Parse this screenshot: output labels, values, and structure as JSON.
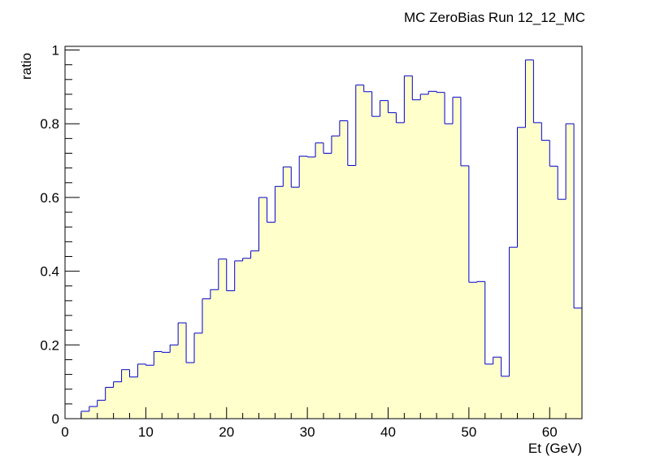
{
  "chart_data": {
    "type": "histogram",
    "title": "MC ZeroBias Run 12_12_MC",
    "xlabel": "Et (GeV)",
    "ylabel": "ratio",
    "xlim": [
      0,
      64
    ],
    "ylim": [
      0,
      1.01
    ],
    "bin_width": 1,
    "x_ticks": [
      0,
      10,
      20,
      30,
      40,
      50,
      60
    ],
    "y_ticks": [
      0,
      0.2,
      0.4,
      0.6,
      0.8,
      1
    ],
    "x_tick_labels": [
      "0",
      "10",
      "20",
      "30",
      "40",
      "50",
      "60"
    ],
    "y_tick_labels": [
      "0",
      "0.2",
      "0.4",
      "0.6",
      "0.8",
      "1"
    ],
    "grid": false,
    "legend": "none",
    "series": [
      {
        "x_bin_edges": [
          2,
          3,
          4,
          5,
          6,
          7,
          8,
          9,
          10,
          11,
          12,
          13,
          14,
          15,
          16,
          17,
          18,
          19,
          20,
          21,
          22,
          23,
          24,
          25,
          26,
          27,
          28,
          29,
          30,
          31,
          32,
          33,
          34,
          35,
          36,
          37,
          38,
          39,
          40,
          41,
          42,
          43,
          44,
          45,
          46,
          47,
          48,
          49,
          50,
          51,
          52,
          53,
          54,
          55,
          56,
          57,
          58,
          59,
          60,
          61,
          62,
          63,
          64
        ],
        "values": [
          0.02,
          0.033,
          0.05,
          0.085,
          0.1,
          0.133,
          0.113,
          0.148,
          0.145,
          0.182,
          0.18,
          0.2,
          0.26,
          0.152,
          0.232,
          0.325,
          0.35,
          0.433,
          0.347,
          0.428,
          0.435,
          0.455,
          0.6,
          0.533,
          0.63,
          0.683,
          0.628,
          0.712,
          0.71,
          0.748,
          0.72,
          0.767,
          0.808,
          0.687,
          0.905,
          0.887,
          0.82,
          0.863,
          0.83,
          0.803,
          0.93,
          0.865,
          0.88,
          0.888,
          0.885,
          0.8,
          0.872,
          0.686,
          0.37,
          0.372,
          0.148,
          0.167,
          0.115,
          0.465,
          0.79,
          0.973,
          0.803,
          0.755,
          0.685,
          0.595,
          0.8,
          0.3
        ]
      }
    ],
    "colors": {
      "line": "#0000cc",
      "fill": "#ffffcc",
      "axis": "#000000"
    }
  }
}
